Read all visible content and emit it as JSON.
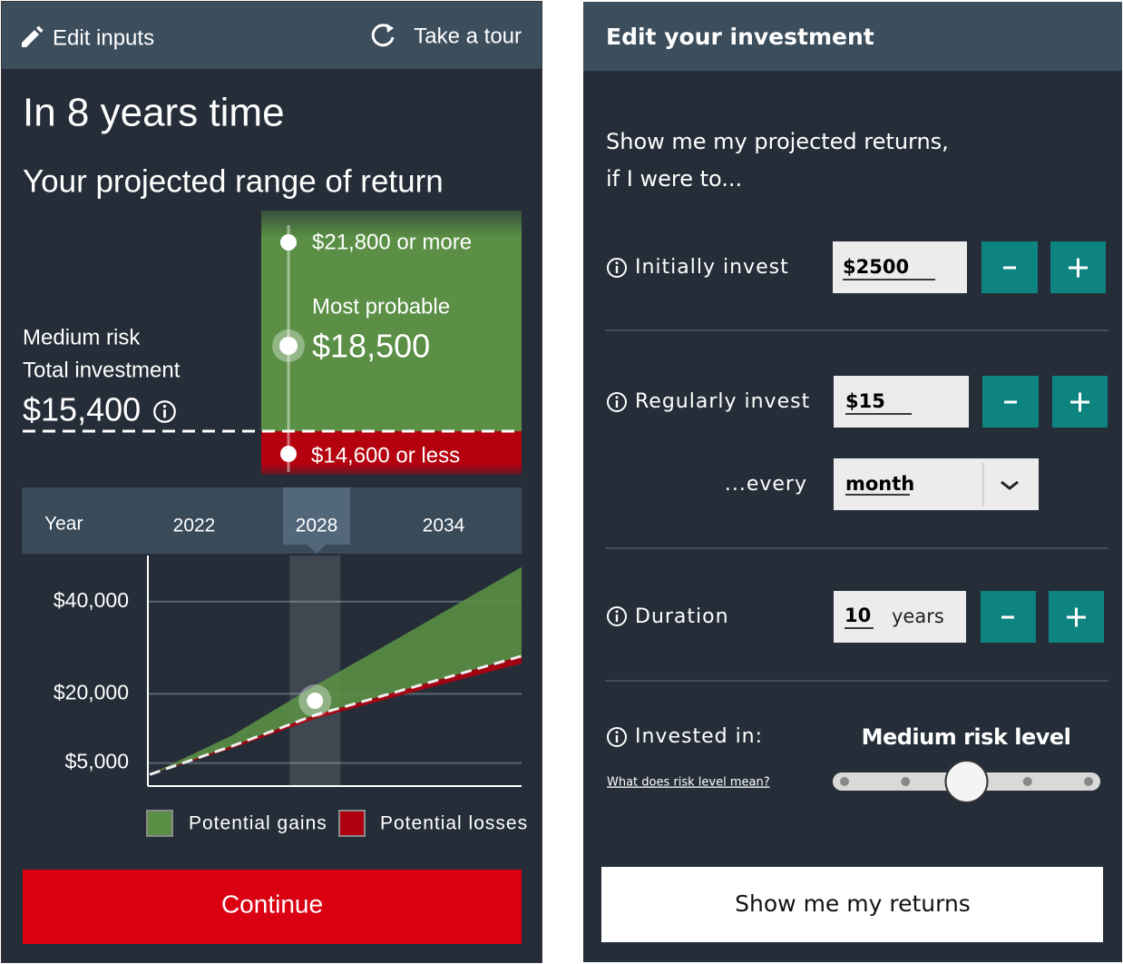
{
  "projection": {
    "header": {
      "edit": "Edit inputs",
      "tour": "Take a tour"
    },
    "headline": "In 8 years time",
    "subtitle": "Your projected range of return",
    "summary": {
      "risk": "Medium risk",
      "total_label": "Total investment",
      "total": "$15,400"
    },
    "range": {
      "high": "$21,800 or more",
      "probable_label": "Most probable",
      "probable": "$18,500",
      "low": "$14,600 or less"
    },
    "year_strip": {
      "label": "Year",
      "years": [
        "2022",
        "2028",
        "2034"
      ],
      "selected": 1
    },
    "button": "Continue"
  },
  "chart_data": {
    "type": "area",
    "x": [
      2020,
      2024,
      2028,
      2032,
      2038
    ],
    "xlim": [
      2020,
      2038
    ],
    "ylim": [
      0,
      50000
    ],
    "yticks": [
      {
        "value": 40000,
        "label": "$40,000"
      },
      {
        "value": 20000,
        "label": "$20,000"
      },
      {
        "value": 5000,
        "label": "$5,000"
      }
    ],
    "grid": true,
    "invested": [
      2500,
      8700,
      15400,
      20500,
      28200
    ],
    "series": [
      {
        "name": "Potential gains",
        "color": "#5a8f45",
        "values": [
          2500,
          11000,
          21800,
          32000,
          47500
        ]
      },
      {
        "name": "Potential losses",
        "color": "#b0000f",
        "values": [
          2500,
          8200,
          14600,
          19500,
          26600
        ]
      }
    ],
    "highlight": {
      "x": 2028,
      "value": 18500
    }
  },
  "form": {
    "title": "Edit your investment",
    "intro": [
      "Show me my projected returns,",
      "if I were to..."
    ],
    "initial": {
      "label": "Initially invest",
      "value": "$2500"
    },
    "regular": {
      "label": "Regularly invest",
      "value": "$15",
      "every_label": "...every",
      "period": "month"
    },
    "duration": {
      "label": "Duration",
      "value": "10",
      "unit": "years"
    },
    "risk": {
      "label": "Invested in:",
      "level": "Medium risk level",
      "help": "What does risk level mean?",
      "steps": 5,
      "selected": 2
    },
    "submit": "Show me my returns"
  }
}
